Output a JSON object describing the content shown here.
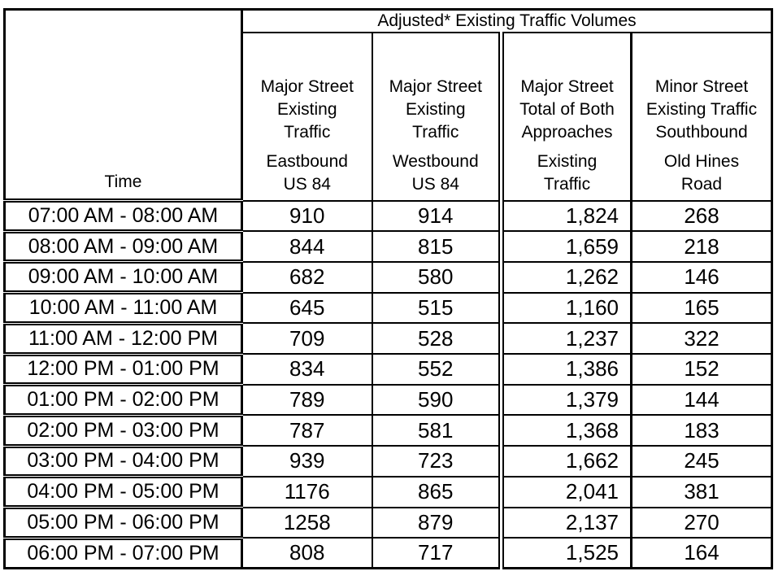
{
  "table": {
    "banner": "Adjusted* Existing Traffic Volumes",
    "time_header": "Time",
    "columns": [
      {
        "block1": "Major Street\nExisting\nTraffic",
        "block2": "Eastbound\nUS 84"
      },
      {
        "block1": "Major Street\nExisting\nTraffic",
        "block2": "Westbound\nUS 84"
      },
      {
        "block1": "Major Street\nTotal of Both\nApproaches",
        "block2": "Existing\nTraffic"
      },
      {
        "block1": "Minor Street\nExisting Traffic\nSouthbound",
        "block2": "Old Hines\nRoad"
      }
    ],
    "rows": [
      {
        "time": "07:00 AM - 08:00 AM",
        "eastbound": "910",
        "westbound": "914",
        "total": "1,824",
        "minor": "268"
      },
      {
        "time": "08:00 AM - 09:00 AM",
        "eastbound": "844",
        "westbound": "815",
        "total": "1,659",
        "minor": "218"
      },
      {
        "time": "09:00 AM - 10:00 AM",
        "eastbound": "682",
        "westbound": "580",
        "total": "1,262",
        "minor": "146"
      },
      {
        "time": "10:00 AM - 11:00 AM",
        "eastbound": "645",
        "westbound": "515",
        "total": "1,160",
        "minor": "165"
      },
      {
        "time": "11:00 AM - 12:00 PM",
        "eastbound": "709",
        "westbound": "528",
        "total": "1,237",
        "minor": "322"
      },
      {
        "time": "12:00 PM - 01:00 PM",
        "eastbound": "834",
        "westbound": "552",
        "total": "1,386",
        "minor": "152"
      },
      {
        "time": "01:00 PM - 02:00 PM",
        "eastbound": "789",
        "westbound": "590",
        "total": "1,379",
        "minor": "144"
      },
      {
        "time": "02:00 PM - 03:00 PM",
        "eastbound": "787",
        "westbound": "581",
        "total": "1,368",
        "minor": "183"
      },
      {
        "time": "03:00 PM - 04:00 PM",
        "eastbound": "939",
        "westbound": "723",
        "total": "1,662",
        "minor": "245"
      },
      {
        "time": "04:00 PM - 05:00 PM",
        "eastbound": "1176",
        "westbound": "865",
        "total": "2,041",
        "minor": "381"
      },
      {
        "time": "05:00 PM - 06:00 PM",
        "eastbound": "1258",
        "westbound": "879",
        "total": "2,137",
        "minor": "270"
      },
      {
        "time": "06:00 PM - 07:00 PM",
        "eastbound": "808",
        "westbound": "717",
        "total": "1,525",
        "minor": "164"
      }
    ]
  },
  "colors": {
    "border": "#000000",
    "text": "#000000",
    "background": "#ffffff"
  }
}
